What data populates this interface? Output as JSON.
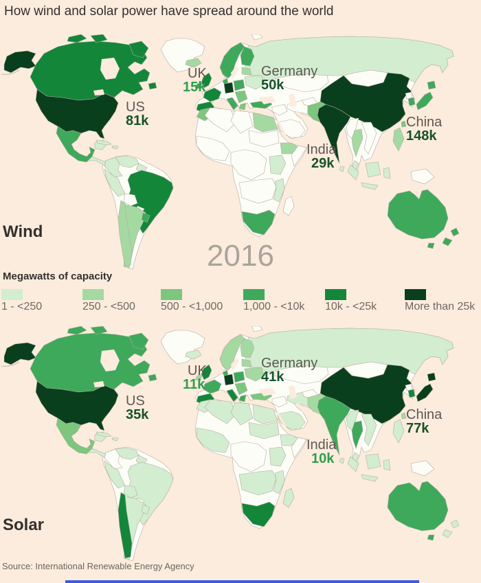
{
  "title": "How wind and solar power have spread around the world",
  "year": "2016",
  "source": "Source: International Renewable Energy Agency",
  "legend": {
    "title": "Megawatts of capacity",
    "bins": [
      {
        "label": "1 - <250",
        "color": "#d3edd1"
      },
      {
        "label": "250 - <500",
        "color": "#a5d9a2"
      },
      {
        "label": "500 - <1,000",
        "color": "#7cc67e"
      },
      {
        "label": "1,000 - <10k",
        "color": "#3fa95b"
      },
      {
        "label": "10k - <25k",
        "color": "#13863a"
      },
      {
        "label": "More than 25k",
        "color": "#0a3f1d"
      }
    ]
  },
  "maps": [
    {
      "id": "wind",
      "label": "Wind",
      "annotations": [
        {
          "name": "US",
          "value": "81k",
          "value_color": "#175229"
        },
        {
          "name": "UK",
          "value": "15k",
          "value_color": "#2f9e4e"
        },
        {
          "name": "Germany",
          "value": "50k",
          "value_color": "#175229"
        },
        {
          "name": "India",
          "value": "29k",
          "value_color": "#175229"
        },
        {
          "name": "China",
          "value": "148k",
          "value_color": "#175229"
        }
      ]
    },
    {
      "id": "solar",
      "label": "Solar",
      "annotations": [
        {
          "name": "US",
          "value": "35k",
          "value_color": "#175229"
        },
        {
          "name": "UK",
          "value": "11k",
          "value_color": "#2f9e4e"
        },
        {
          "name": "Germany",
          "value": "41k",
          "value_color": "#175229"
        },
        {
          "name": "India",
          "value": "10k",
          "value_color": "#2f9e4e"
        },
        {
          "name": "China",
          "value": "77k",
          "value_color": "#175229"
        }
      ]
    }
  ],
  "chart_data": {
    "type": "choropleth",
    "title": "How wind and solar power have spread around the world",
    "unit": "Megawatts of capacity",
    "year": 2016,
    "bins": [
      "1 - <250",
      "250 - <500",
      "500 - <1,000",
      "1,000 - <10k",
      "10k - <25k",
      "More than 25k"
    ],
    "bin_colors": [
      "#d3edd1",
      "#a5d9a2",
      "#7cc67e",
      "#3fa95b",
      "#13863a",
      "#0a3f1d"
    ],
    "no_data_color": "#fdfdf8",
    "series": [
      {
        "name": "Wind",
        "labeled_values": {
          "US": "81k",
          "UK": "15k",
          "Germany": "50k",
          "India": "29k",
          "China": "148k"
        },
        "country_bins": {
          "alaska": 5,
          "canada": 4,
          "arctic1": 4,
          "arctic2": 4,
          "baffin": 4,
          "newfoundland": 4,
          "greenland": "nd",
          "us": 5,
          "mexico": 3,
          "yucatan": 0,
          "central_america": 0,
          "cuba": 0,
          "hispaniola": 0,
          "colombia": 0,
          "venezuela": 0,
          "guyanas": 0,
          "french_guiana": 0,
          "brazil": 4,
          "peru": 0,
          "bolivia": "nd",
          "paraguay": "nd",
          "argentina": 1,
          "chile": 1,
          "uruguay": 3,
          "iceland": 1,
          "uk": 4,
          "ireland": 3,
          "scandinavia": 3,
          "finland": 3,
          "baltics": 1,
          "denmark": 3,
          "germany": 5,
          "poland": 3,
          "france": 4,
          "iberia": 4,
          "italy": 3,
          "balkans": 2,
          "greece": 2,
          "ukraine": 0,
          "turkey": 3,
          "russia": 0,
          "kazakh": "nd",
          "mongolia": "nd",
          "iraq_syria": "nd",
          "saudi": "nd",
          "iran": "nd",
          "afghanistan": "nd",
          "pakistan": 2,
          "india": 5,
          "sri_lanka": 0,
          "china": 5,
          "korea_n": "nd",
          "korea_s": 3,
          "hokkaido": 3,
          "honshu": 3,
          "taiwan": 2,
          "myanmar": "nd",
          "thailand": 1,
          "vietnam": "nd",
          "malaysia": 0,
          "philippines": 1,
          "sumatra": 0,
          "borneo": 0,
          "java": 0,
          "sulawesi": 0,
          "new_guinea": "nd",
          "australia": 3,
          "tasmania": 3,
          "nz_north": 3,
          "nz_south": 3,
          "svalbard": "nd",
          "morocco": 2,
          "algeria": "nd",
          "libya": "nd",
          "egypt": 1,
          "sudan": "nd",
          "westafrica": "nd",
          "ethiopia": 1,
          "somalia": "nd",
          "central_africa": "nd",
          "eastafrica": 0,
          "angola_zambia": "nd",
          "mozambique": 0,
          "south_africa": 3,
          "madagascar": "nd"
        }
      },
      {
        "name": "Solar",
        "labeled_values": {
          "US": "35k",
          "UK": "11k",
          "Germany": "41k",
          "India": "10k",
          "China": "77k"
        },
        "country_bins": {
          "alaska": 5,
          "canada": 3,
          "arctic1": 3,
          "arctic2": 3,
          "baffin": 3,
          "newfoundland": 3,
          "greenland": "nd",
          "us": 5,
          "mexico": 2,
          "yucatan": 0,
          "central_america": 0,
          "cuba": 0,
          "hispaniola": 0,
          "colombia": "nd",
          "venezuela": 0,
          "guyanas": 0,
          "french_guiana": 4,
          "brazil": 0,
          "peru": 0,
          "bolivia": 0,
          "paraguay": "nd",
          "argentina": 0,
          "chile": 4,
          "uruguay": 0,
          "iceland": 0,
          "uk": 4,
          "ireland": 1,
          "scandinavia": 1,
          "finland": 1,
          "baltics": 1,
          "denmark": 3,
          "germany": 5,
          "poland": 3,
          "france": 3,
          "iberia": 4,
          "italy": 4,
          "balkans": 2,
          "greece": 3,
          "ukraine": 1,
          "turkey": 2,
          "russia": 0,
          "kazakh": "nd",
          "mongolia": "nd",
          "iraq_syria": "nd",
          "saudi": 0,
          "iran": 0,
          "afghanistan": "nd",
          "pakistan": 1,
          "india": 3,
          "sri_lanka": 0,
          "china": 5,
          "korea_n": "nd",
          "korea_s": 4,
          "hokkaido": 5,
          "honshu": 5,
          "taiwan": 1,
          "myanmar": 0,
          "thailand": 3,
          "vietnam": 0,
          "malaysia": 0,
          "philippines": 0,
          "sumatra": 0,
          "borneo": 0,
          "java": 0,
          "sulawesi": 0,
          "new_guinea": "nd",
          "australia": 3,
          "tasmania": 3,
          "nz_north": 0,
          "nz_south": 0,
          "svalbard": "nd",
          "morocco": 0,
          "algeria": 0,
          "libya": 0,
          "egypt": 0,
          "sudan": 0,
          "westafrica": 0,
          "ethiopia": 0,
          "somalia": "nd",
          "central_africa": "nd",
          "eastafrica": 0,
          "angola_zambia": 0,
          "mozambique": 0,
          "south_africa": 4,
          "madagascar": 0
        }
      }
    ]
  }
}
